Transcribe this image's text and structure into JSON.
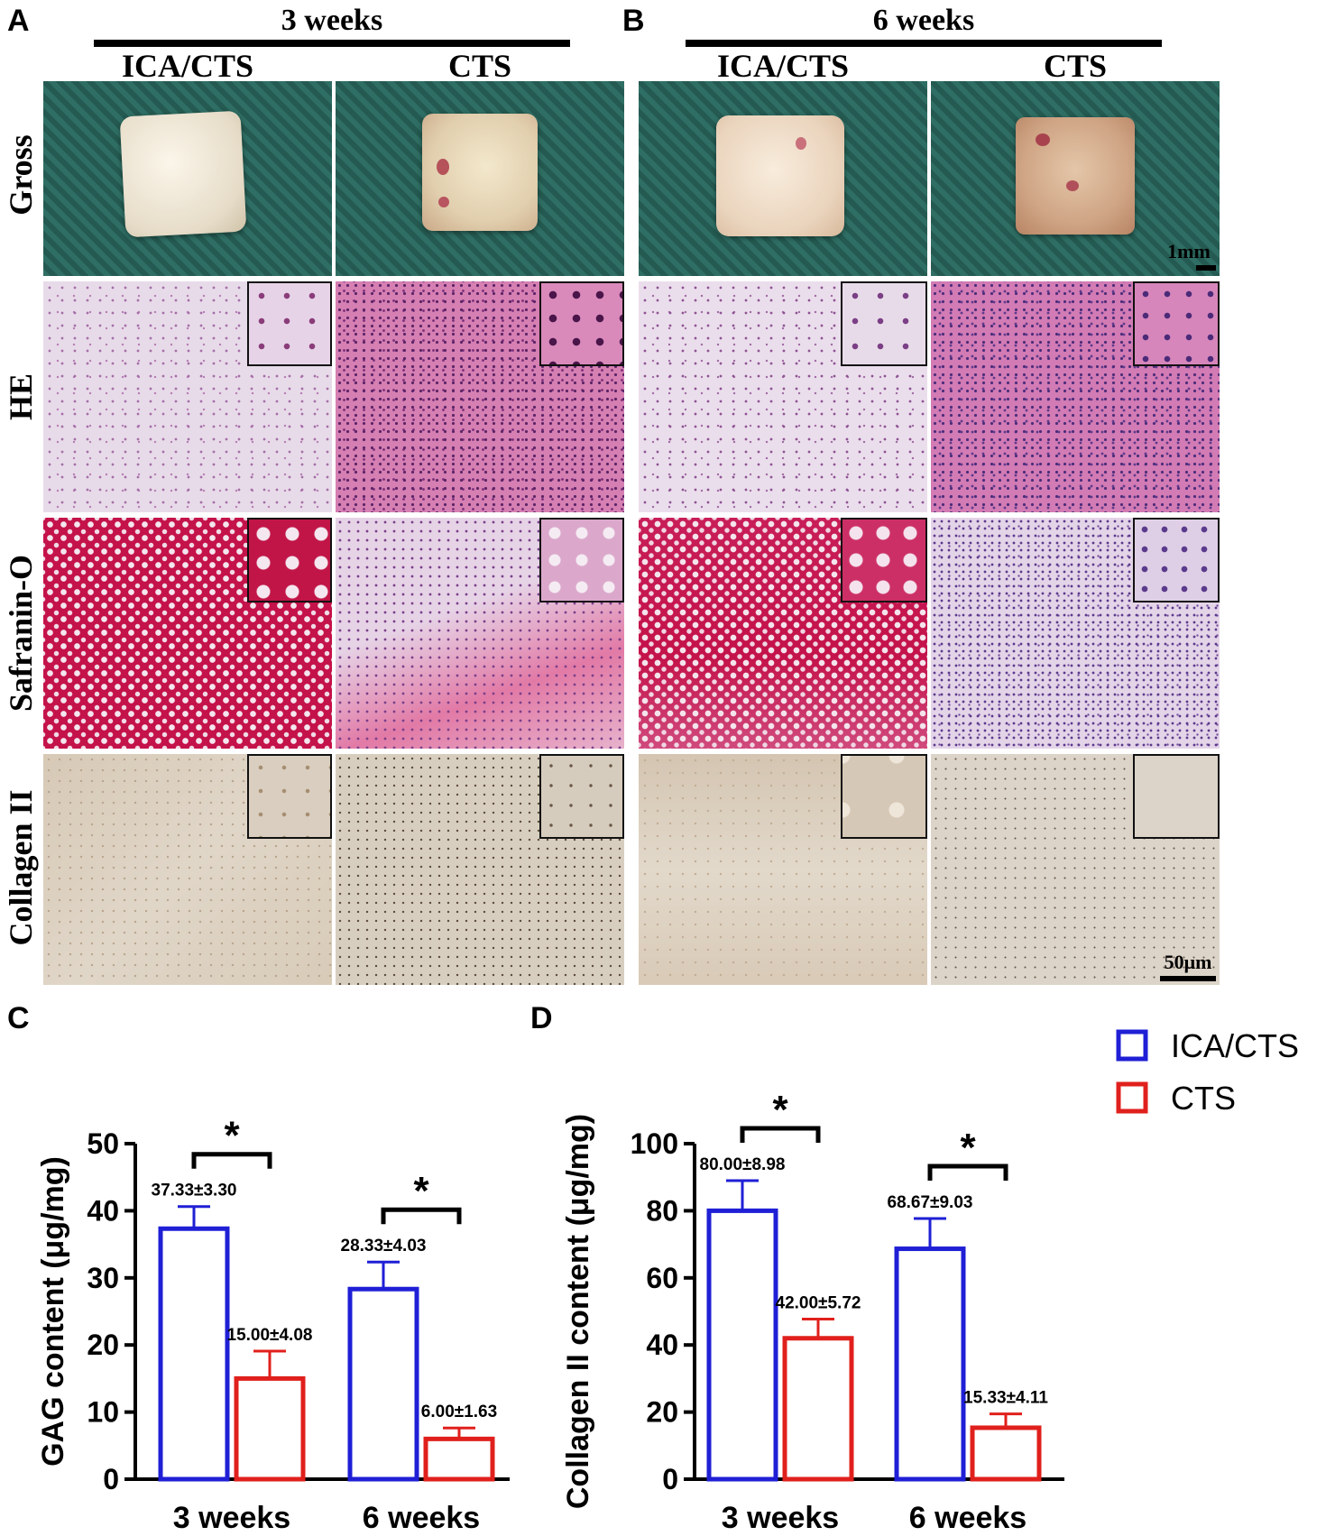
{
  "figure": {
    "panel_a_label": "A",
    "panel_b_label": "B",
    "panel_c_label": "C",
    "panel_d_label": "D",
    "period_a": "3 weeks",
    "period_b": "6 weeks",
    "group_1": "ICA/CTS",
    "group_2": "CTS",
    "rows": [
      "Gross",
      "HE",
      "Safranin-O",
      "Collagen II"
    ],
    "scale_gross": "1mm",
    "scale_micro": "50μm"
  },
  "colors": {
    "ica_cts": "#1f1fd6",
    "cts": "#e0201c",
    "gross_bg": "#2c6b62",
    "he_light": "#e6d9ea",
    "he_dense": "#cf6aa6",
    "saf_red": "#c4124a",
    "saf_light": "#e3cde3",
    "col2": "#d9cfc0"
  },
  "chart_data": [
    {
      "type": "bar",
      "panel": "C",
      "title": "",
      "xlabel": "",
      "ylabel": "GAG content (μg/mg)",
      "ylim": [
        0,
        50
      ],
      "yticks": [
        0,
        10,
        20,
        30,
        40,
        50
      ],
      "categories": [
        "3 weeks",
        "6 weeks"
      ],
      "series": [
        {
          "name": "ICA/CTS",
          "values": [
            37.33,
            28.33
          ],
          "errors": [
            3.3,
            4.03
          ],
          "labels": [
            "37.33±3.30",
            "28.33±4.03"
          ]
        },
        {
          "name": "CTS",
          "values": [
            15.0,
            6.0
          ],
          "errors": [
            4.08,
            1.63
          ],
          "labels": [
            "15.00±4.08",
            "6.00±1.63"
          ]
        }
      ],
      "significance": [
        "*",
        "*"
      ],
      "grid": false
    },
    {
      "type": "bar",
      "panel": "D",
      "title": "",
      "xlabel": "",
      "ylabel": "Collagen II content (μg/mg)",
      "ylim": [
        0,
        100
      ],
      "yticks": [
        0,
        20,
        40,
        60,
        80,
        100
      ],
      "categories": [
        "3 weeks",
        "6 weeks"
      ],
      "series": [
        {
          "name": "ICA/CTS",
          "values": [
            80.0,
            68.67
          ],
          "errors": [
            8.98,
            9.03
          ],
          "labels": [
            "80.00±8.98",
            "68.67±9.03"
          ]
        },
        {
          "name": "CTS",
          "values": [
            42.0,
            15.33
          ],
          "errors": [
            5.72,
            4.11
          ],
          "labels": [
            "42.00±5.72",
            "15.33±4.11"
          ]
        }
      ],
      "significance": [
        "*",
        "*"
      ],
      "legend": "top-right",
      "grid": false
    }
  ]
}
